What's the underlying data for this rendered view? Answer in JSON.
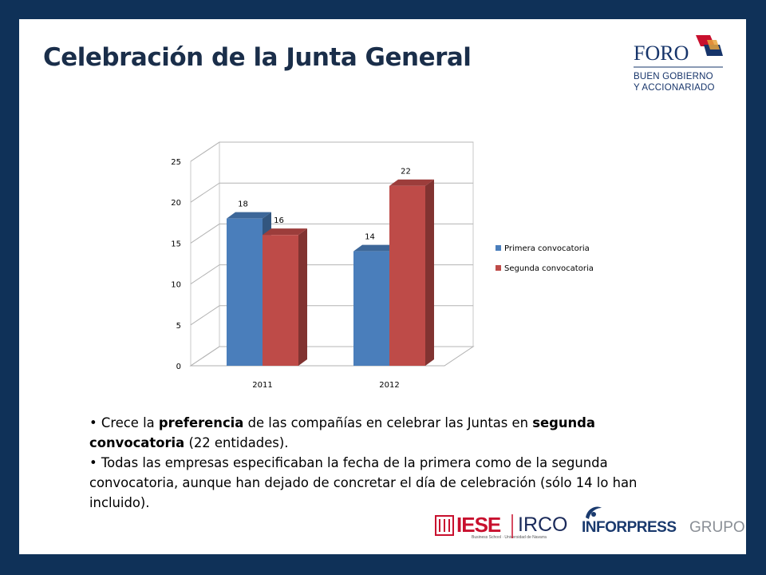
{
  "slide": {
    "title": "Celebración de la Junta General",
    "logo_top": {
      "word": "FORO",
      "line1": "BUEN GOBIERNO",
      "line2": "Y ACCIONARIADO"
    },
    "bullets": [
      {
        "segments": [
          {
            "text": "Crece la ",
            "bold": false
          },
          {
            "text": "preferencia",
            "bold": true
          },
          {
            "text": " de las compañías en celebrar las Juntas en ",
            "bold": false
          },
          {
            "text": "segunda convocatoria",
            "bold": true
          },
          {
            "text": " (22 entidades).",
            "bold": false
          }
        ]
      },
      {
        "segments": [
          {
            "text": "Todas las empresas especificaban la fecha de la primera como de la segunda convocatoria, aunque  han dejado de concretar el día de celebración (sólo 14 lo han incluido).",
            "bold": false
          }
        ]
      }
    ],
    "logos_bottom": {
      "iese": "IESE",
      "iese_sub": "Business School · Universidad de Navarra",
      "irco": "IRCO",
      "inforpress": "INFORPRESS",
      "grupo": "GRUPO"
    }
  },
  "chart_data": {
    "type": "bar",
    "categories": [
      "2011",
      "2012"
    ],
    "series": [
      {
        "name": "Primera convocatoria",
        "values": [
          18,
          14
        ],
        "color": "#4a7ebb"
      },
      {
        "name": "Segunda convocatoria",
        "values": [
          16,
          22
        ],
        "color": "#be4b48"
      }
    ],
    "data_labels": true,
    "ylim": [
      0,
      25
    ],
    "yticks": [
      0,
      5,
      10,
      15,
      20,
      25
    ],
    "grid": true,
    "legend": "right",
    "style": "3d-column"
  }
}
